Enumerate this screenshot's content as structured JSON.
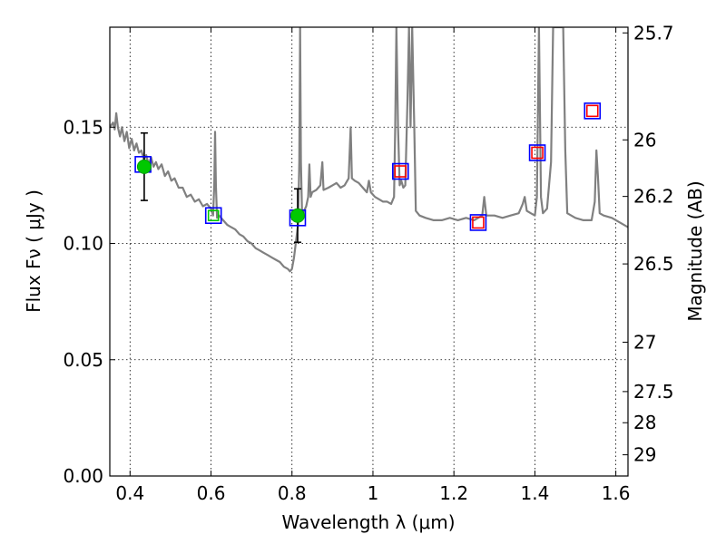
{
  "chart_data": {
    "type": "line",
    "xlabel": "Wavelength  λ (μm)",
    "ylabel_left": "Flux  Fν ( μJy )",
    "ylabel_right": "Magnitude (AB)",
    "xlim": [
      0.35,
      1.63
    ],
    "ylim": [
      0.0,
      0.193
    ],
    "grid": true,
    "x_ticks": [
      {
        "value": 0.4,
        "label": "0.4"
      },
      {
        "value": 0.6,
        "label": "0.6"
      },
      {
        "value": 0.8,
        "label": "0.8"
      },
      {
        "value": 1.0,
        "label": "1"
      },
      {
        "value": 1.2,
        "label": "1.2"
      },
      {
        "value": 1.4,
        "label": "1.4"
      },
      {
        "value": 1.6,
        "label": "1.6"
      }
    ],
    "y_ticks": [
      {
        "value": 0.0,
        "label": "0.00"
      },
      {
        "value": 0.05,
        "label": "0.05"
      },
      {
        "value": 0.1,
        "label": "0.10"
      },
      {
        "value": 0.15,
        "label": "0.15"
      }
    ],
    "right_ticks": [
      {
        "mag": 25.7,
        "label": "25.7"
      },
      {
        "mag": 26.0,
        "label": "26"
      },
      {
        "mag": 26.2,
        "label": "26.2"
      },
      {
        "mag": 26.5,
        "label": "26.5"
      },
      {
        "mag": 27.0,
        "label": "27"
      },
      {
        "mag": 27.5,
        "label": "27.5"
      },
      {
        "mag": 28.0,
        "label": "28"
      },
      {
        "mag": 29.0,
        "label": "29"
      }
    ],
    "model_spectrum": {
      "color": "#808080",
      "points": [
        [
          0.35,
          0.15
        ],
        [
          0.358,
          0.152
        ],
        [
          0.362,
          0.149
        ],
        [
          0.366,
          0.156
        ],
        [
          0.37,
          0.15
        ],
        [
          0.375,
          0.146
        ],
        [
          0.38,
          0.15
        ],
        [
          0.386,
          0.144
        ],
        [
          0.392,
          0.148
        ],
        [
          0.398,
          0.141
        ],
        [
          0.404,
          0.145
        ],
        [
          0.41,
          0.14
        ],
        [
          0.416,
          0.143
        ],
        [
          0.422,
          0.139
        ],
        [
          0.428,
          0.14
        ],
        [
          0.434,
          0.136
        ],
        [
          0.44,
          0.138
        ],
        [
          0.446,
          0.134
        ],
        [
          0.452,
          0.137
        ],
        [
          0.458,
          0.133
        ],
        [
          0.464,
          0.135
        ],
        [
          0.47,
          0.132
        ],
        [
          0.478,
          0.134
        ],
        [
          0.486,
          0.129
        ],
        [
          0.494,
          0.131
        ],
        [
          0.502,
          0.127
        ],
        [
          0.51,
          0.128
        ],
        [
          0.52,
          0.124
        ],
        [
          0.53,
          0.124
        ],
        [
          0.54,
          0.12
        ],
        [
          0.55,
          0.121
        ],
        [
          0.56,
          0.118
        ],
        [
          0.57,
          0.119
        ],
        [
          0.58,
          0.116
        ],
        [
          0.59,
          0.117
        ],
        [
          0.6,
          0.115
        ],
        [
          0.605,
          0.112
        ],
        [
          0.608,
          0.125
        ],
        [
          0.61,
          0.148
        ],
        [
          0.612,
          0.125
        ],
        [
          0.615,
          0.111
        ],
        [
          0.62,
          0.112
        ],
        [
          0.63,
          0.11
        ],
        [
          0.64,
          0.108
        ],
        [
          0.65,
          0.107
        ],
        [
          0.66,
          0.106
        ],
        [
          0.67,
          0.104
        ],
        [
          0.68,
          0.103
        ],
        [
          0.69,
          0.101
        ],
        [
          0.7,
          0.1
        ],
        [
          0.71,
          0.098
        ],
        [
          0.72,
          0.097
        ],
        [
          0.73,
          0.096
        ],
        [
          0.74,
          0.095
        ],
        [
          0.75,
          0.094
        ],
        [
          0.76,
          0.093
        ],
        [
          0.77,
          0.092
        ],
        [
          0.78,
          0.09
        ],
        [
          0.79,
          0.089
        ],
        [
          0.795,
          0.088
        ],
        [
          0.8,
          0.089
        ],
        [
          0.805,
          0.094
        ],
        [
          0.81,
          0.101
        ],
        [
          0.815,
          0.108
        ],
        [
          0.818,
          0.135
        ],
        [
          0.82,
          0.193
        ],
        [
          0.822,
          0.135
        ],
        [
          0.825,
          0.112
        ],
        [
          0.83,
          0.114
        ],
        [
          0.835,
          0.116
        ],
        [
          0.84,
          0.12
        ],
        [
          0.843,
          0.134
        ],
        [
          0.846,
          0.12
        ],
        [
          0.85,
          0.122
        ],
        [
          0.86,
          0.123
        ],
        [
          0.87,
          0.125
        ],
        [
          0.875,
          0.135
        ],
        [
          0.878,
          0.123
        ],
        [
          0.89,
          0.124
        ],
        [
          0.9,
          0.125
        ],
        [
          0.91,
          0.126
        ],
        [
          0.92,
          0.124
        ],
        [
          0.93,
          0.125
        ],
        [
          0.94,
          0.128
        ],
        [
          0.945,
          0.15
        ],
        [
          0.948,
          0.128
        ],
        [
          0.955,
          0.127
        ],
        [
          0.965,
          0.126
        ],
        [
          0.975,
          0.124
        ],
        [
          0.985,
          0.122
        ],
        [
          0.99,
          0.127
        ],
        [
          0.995,
          0.122
        ],
        [
          1.005,
          0.12
        ],
        [
          1.015,
          0.119
        ],
        [
          1.025,
          0.118
        ],
        [
          1.035,
          0.118
        ],
        [
          1.045,
          0.117
        ],
        [
          1.052,
          0.12
        ],
        [
          1.055,
          0.15
        ],
        [
          1.058,
          0.193
        ],
        [
          1.062,
          0.15
        ],
        [
          1.066,
          0.125
        ],
        [
          1.07,
          0.127
        ],
        [
          1.075,
          0.124
        ],
        [
          1.08,
          0.125
        ],
        [
          1.085,
          0.16
        ],
        [
          1.089,
          0.193
        ],
        [
          1.093,
          0.15
        ],
        [
          1.097,
          0.193
        ],
        [
          1.102,
          0.15
        ],
        [
          1.106,
          0.114
        ],
        [
          1.115,
          0.112
        ],
        [
          1.13,
          0.111
        ],
        [
          1.15,
          0.11
        ],
        [
          1.17,
          0.11
        ],
        [
          1.19,
          0.111
        ],
        [
          1.21,
          0.11
        ],
        [
          1.23,
          0.111
        ],
        [
          1.25,
          0.11
        ],
        [
          1.26,
          0.111
        ],
        [
          1.27,
          0.112
        ],
        [
          1.275,
          0.12
        ],
        [
          1.28,
          0.112
        ],
        [
          1.3,
          0.112
        ],
        [
          1.32,
          0.111
        ],
        [
          1.34,
          0.112
        ],
        [
          1.36,
          0.113
        ],
        [
          1.37,
          0.117
        ],
        [
          1.375,
          0.12
        ],
        [
          1.38,
          0.114
        ],
        [
          1.39,
          0.113
        ],
        [
          1.4,
          0.112
        ],
        [
          1.405,
          0.12
        ],
        [
          1.41,
          0.193
        ],
        [
          1.415,
          0.12
        ],
        [
          1.42,
          0.113
        ],
        [
          1.43,
          0.115
        ],
        [
          1.44,
          0.135
        ],
        [
          1.445,
          0.193
        ],
        [
          1.455,
          0.193
        ],
        [
          1.46,
          0.193
        ],
        [
          1.47,
          0.193
        ],
        [
          1.475,
          0.14
        ],
        [
          1.48,
          0.113
        ],
        [
          1.5,
          0.111
        ],
        [
          1.52,
          0.11
        ],
        [
          1.54,
          0.11
        ],
        [
          1.548,
          0.118
        ],
        [
          1.552,
          0.14
        ],
        [
          1.556,
          0.128
        ],
        [
          1.56,
          0.113
        ],
        [
          1.57,
          0.112
        ],
        [
          1.59,
          0.111
        ],
        [
          1.61,
          0.109
        ],
        [
          1.63,
          0.107
        ]
      ]
    },
    "observed_points": {
      "color": "#00c800",
      "points": [
        {
          "x": 0.435,
          "y": 0.133,
          "err": 0.0145
        },
        {
          "x": 0.606,
          "y": 0.112
        },
        {
          "x": 0.814,
          "y": 0.112,
          "err": 0.0115
        }
      ]
    },
    "model_photometry": {
      "color": "#0000ff",
      "points": [
        {
          "x": 0.432,
          "y": 0.134
        },
        {
          "x": 0.606,
          "y": 0.112
        },
        {
          "x": 0.814,
          "y": 0.111
        },
        {
          "x": 1.068,
          "y": 0.131
        },
        {
          "x": 1.26,
          "y": 0.109
        },
        {
          "x": 1.406,
          "y": 0.139
        },
        {
          "x": 1.542,
          "y": 0.157
        }
      ]
    },
    "upper_limits": {
      "color": "#ff0000",
      "points": [
        {
          "x": 1.068,
          "y": 0.131
        },
        {
          "x": 1.26,
          "y": 0.109
        },
        {
          "x": 1.406,
          "y": 0.139
        },
        {
          "x": 1.542,
          "y": 0.157
        }
      ]
    }
  }
}
